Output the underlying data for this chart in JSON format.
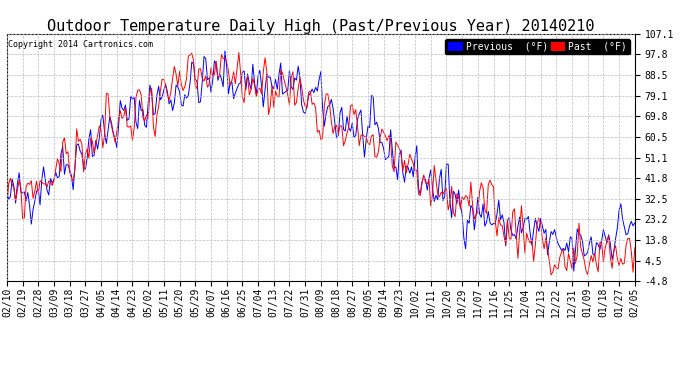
{
  "title": "Outdoor Temperature Daily High (Past/Previous Year) 20140210",
  "copyright": "Copyright 2014 Cartronics.com",
  "yticks": [
    107.1,
    97.8,
    88.5,
    79.1,
    69.8,
    60.5,
    51.1,
    41.8,
    32.5,
    23.2,
    13.8,
    4.5,
    -4.8
  ],
  "ylim": [
    -4.8,
    107.1
  ],
  "legend_labels": [
    "Previous  (°F)",
    "Past  (°F)"
  ],
  "legend_colors": [
    "#0000ff",
    "#ff0000"
  ],
  "background_color": "#ffffff",
  "grid_color": "#bbbbbb",
  "title_fontsize": 11,
  "tick_fontsize": 7,
  "x_dates": [
    "02/10",
    "02/19",
    "02/28",
    "03/09",
    "03/18",
    "03/27",
    "04/05",
    "04/14",
    "04/23",
    "05/02",
    "05/11",
    "05/20",
    "05/29",
    "06/07",
    "06/16",
    "06/25",
    "07/04",
    "07/13",
    "07/22",
    "07/31",
    "08/09",
    "08/18",
    "08/27",
    "09/05",
    "09/14",
    "09/23",
    "10/02",
    "10/11",
    "10/20",
    "10/29",
    "11/07",
    "11/16",
    "11/25",
    "12/04",
    "12/13",
    "12/22",
    "12/31",
    "01/09",
    "01/18",
    "01/27",
    "02/05"
  ]
}
